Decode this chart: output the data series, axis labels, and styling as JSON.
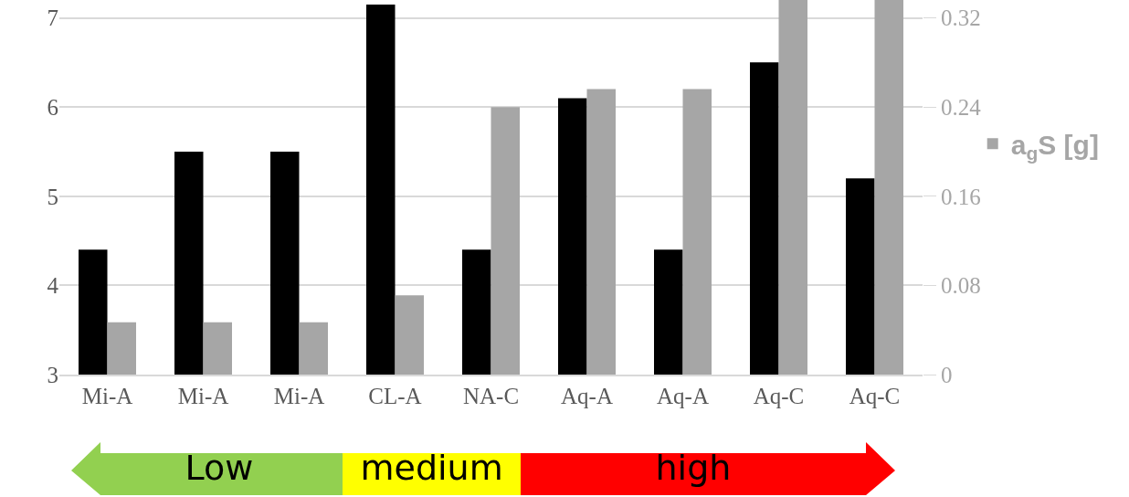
{
  "chart_data": {
    "type": "bar",
    "categories": [
      "Mi-A",
      "Mi-A",
      "Mi-A",
      "CL-A",
      "NA-C",
      "Aq-A",
      "Aq-A",
      "Aq-C",
      "Aq-C"
    ],
    "series": [
      {
        "color": "#000000",
        "values": [
          4.4,
          5.5,
          5.5,
          7.15,
          4.4,
          6.1,
          4.4,
          6.5,
          5.2
        ]
      },
      {
        "name": "a$_{g}$S [g]",
        "color": "#a6a6a6",
        "axis": "y2",
        "values": [
          0.047,
          0.047,
          0.047,
          0.071,
          0.24,
          0.256,
          0.256,
          0.336,
          0.336
        ]
      }
    ],
    "legend": "right",
    "ylim": [
      3,
      7.2
    ],
    "yticks": [
      3,
      4,
      5,
      6,
      7
    ],
    "y2lim": [
      0,
      0.336
    ],
    "y2ticks": [
      0,
      0.08,
      0.16,
      0.24,
      0.32
    ],
    "grid": "y",
    "annotations": [
      "Low",
      "medium",
      "high"
    ]
  }
}
